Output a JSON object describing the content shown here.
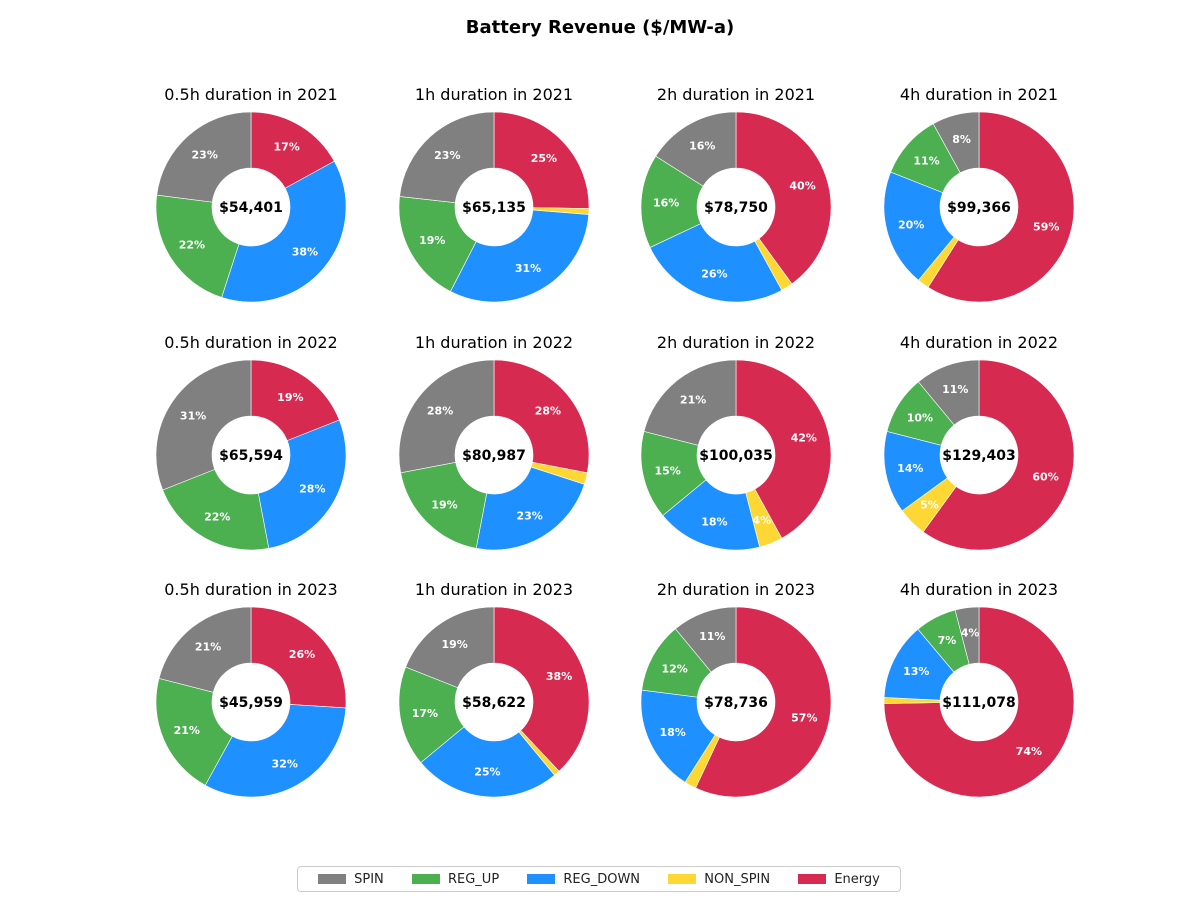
{
  "chart_data": {
    "type": "pie",
    "title": "Battery Revenue ($/MW-a)",
    "colors": {
      "SPIN": "#808080",
      "REG_UP": "#4CAF50",
      "REG_DOWN": "#1E90FF",
      "NON_SPIN": "#FDD835",
      "Energy": "#D62A50"
    },
    "legend": {
      "placement": "bottom-center",
      "entries": [
        "SPIN",
        "REG_UP",
        "REG_DOWN",
        "NON_SPIN",
        "Energy"
      ]
    },
    "charts": [
      {
        "title": "0.5h duration in 2021",
        "center_label": "$54,401",
        "slices": [
          {
            "name": "Energy",
            "value": 17,
            "label": "17%"
          },
          {
            "name": "NON_SPIN",
            "value": 0,
            "label": ""
          },
          {
            "name": "REG_DOWN",
            "value": 38,
            "label": "38%"
          },
          {
            "name": "REG_UP",
            "value": 22,
            "label": "22%"
          },
          {
            "name": "SPIN",
            "value": 23,
            "label": "23%"
          }
        ]
      },
      {
        "title": "1h duration in 2021",
        "center_label": "$65,135",
        "slices": [
          {
            "name": "Energy",
            "value": 25,
            "label": "25%"
          },
          {
            "name": "NON_SPIN",
            "value": 1,
            "label": ""
          },
          {
            "name": "REG_DOWN",
            "value": 31,
            "label": "31%"
          },
          {
            "name": "REG_UP",
            "value": 19,
            "label": "19%"
          },
          {
            "name": "SPIN",
            "value": 23,
            "label": "23%"
          }
        ]
      },
      {
        "title": "2h duration in 2021",
        "center_label": "$78,750",
        "slices": [
          {
            "name": "Energy",
            "value": 40,
            "label": "40%"
          },
          {
            "name": "NON_SPIN",
            "value": 2,
            "label": ""
          },
          {
            "name": "REG_DOWN",
            "value": 26,
            "label": "26%"
          },
          {
            "name": "REG_UP",
            "value": 16,
            "label": "16%"
          },
          {
            "name": "SPIN",
            "value": 16,
            "label": "16%"
          }
        ]
      },
      {
        "title": "4h duration in 2021",
        "center_label": "$99,366",
        "slices": [
          {
            "name": "Energy",
            "value": 59,
            "label": "59%"
          },
          {
            "name": "NON_SPIN",
            "value": 2,
            "label": ""
          },
          {
            "name": "REG_DOWN",
            "value": 20,
            "label": "20%"
          },
          {
            "name": "REG_UP",
            "value": 11,
            "label": "11%"
          },
          {
            "name": "SPIN",
            "value": 8,
            "label": "8%"
          }
        ]
      },
      {
        "title": "0.5h duration in 2022",
        "center_label": "$65,594",
        "slices": [
          {
            "name": "Energy",
            "value": 19,
            "label": "19%"
          },
          {
            "name": "NON_SPIN",
            "value": 0,
            "label": ""
          },
          {
            "name": "REG_DOWN",
            "value": 28,
            "label": "28%"
          },
          {
            "name": "REG_UP",
            "value": 22,
            "label": "22%"
          },
          {
            "name": "SPIN",
            "value": 31,
            "label": "31%"
          }
        ]
      },
      {
        "title": "1h duration in 2022",
        "center_label": "$80,987",
        "slices": [
          {
            "name": "Energy",
            "value": 28,
            "label": "28%"
          },
          {
            "name": "NON_SPIN",
            "value": 2,
            "label": ""
          },
          {
            "name": "REG_DOWN",
            "value": 23,
            "label": "23%"
          },
          {
            "name": "REG_UP",
            "value": 19,
            "label": "19%"
          },
          {
            "name": "SPIN",
            "value": 28,
            "label": "28%"
          }
        ]
      },
      {
        "title": "2h duration in 2022",
        "center_label": "$100,035",
        "slices": [
          {
            "name": "Energy",
            "value": 42,
            "label": "42%"
          },
          {
            "name": "NON_SPIN",
            "value": 4,
            "label": "4%"
          },
          {
            "name": "REG_DOWN",
            "value": 18,
            "label": "18%"
          },
          {
            "name": "REG_UP",
            "value": 15,
            "label": "15%"
          },
          {
            "name": "SPIN",
            "value": 21,
            "label": "21%"
          }
        ]
      },
      {
        "title": "4h duration in 2022",
        "center_label": "$129,403",
        "slices": [
          {
            "name": "Energy",
            "value": 60,
            "label": "60%"
          },
          {
            "name": "NON_SPIN",
            "value": 5,
            "label": "5%"
          },
          {
            "name": "REG_DOWN",
            "value": 14,
            "label": "14%"
          },
          {
            "name": "REG_UP",
            "value": 10,
            "label": "10%"
          },
          {
            "name": "SPIN",
            "value": 11,
            "label": "11%"
          }
        ]
      },
      {
        "title": "0.5h duration in 2023",
        "center_label": "$45,959",
        "slices": [
          {
            "name": "Energy",
            "value": 26,
            "label": "26%"
          },
          {
            "name": "NON_SPIN",
            "value": 0,
            "label": ""
          },
          {
            "name": "REG_DOWN",
            "value": 32,
            "label": "32%"
          },
          {
            "name": "REG_UP",
            "value": 21,
            "label": "21%"
          },
          {
            "name": "SPIN",
            "value": 21,
            "label": "21%"
          }
        ]
      },
      {
        "title": "1h duration in 2023",
        "center_label": "$58,622",
        "slices": [
          {
            "name": "Energy",
            "value": 38,
            "label": "38%"
          },
          {
            "name": "NON_SPIN",
            "value": 1,
            "label": ""
          },
          {
            "name": "REG_DOWN",
            "value": 25,
            "label": "25%"
          },
          {
            "name": "REG_UP",
            "value": 17,
            "label": "17%"
          },
          {
            "name": "SPIN",
            "value": 19,
            "label": "19%"
          }
        ]
      },
      {
        "title": "2h duration in 2023",
        "center_label": "$78,736",
        "slices": [
          {
            "name": "Energy",
            "value": 57,
            "label": "57%"
          },
          {
            "name": "NON_SPIN",
            "value": 2,
            "label": ""
          },
          {
            "name": "REG_DOWN",
            "value": 18,
            "label": "18%"
          },
          {
            "name": "REG_UP",
            "value": 12,
            "label": "12%"
          },
          {
            "name": "SPIN",
            "value": 11,
            "label": "11%"
          }
        ]
      },
      {
        "title": "4h duration in 2023",
        "center_label": "$111,078",
        "slices": [
          {
            "name": "Energy",
            "value": 74,
            "label": "74%"
          },
          {
            "name": "NON_SPIN",
            "value": 1,
            "label": ""
          },
          {
            "name": "REG_DOWN",
            "value": 13,
            "label": "13%"
          },
          {
            "name": "REG_UP",
            "value": 7,
            "label": "7%"
          },
          {
            "name": "SPIN",
            "value": 4,
            "label": "4%"
          }
        ]
      }
    ]
  }
}
